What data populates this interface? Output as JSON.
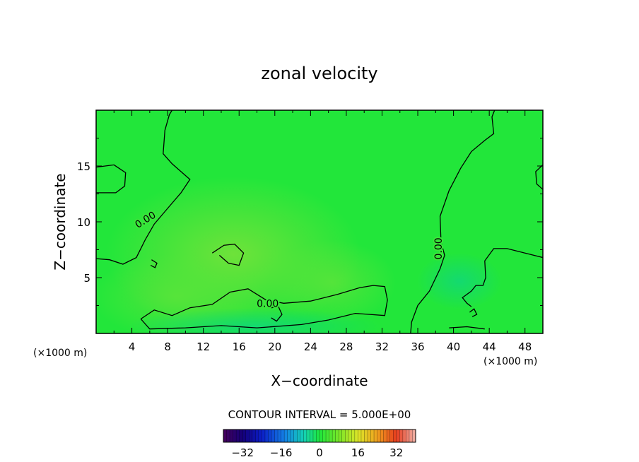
{
  "chart_data": {
    "type": "heatmap",
    "title": "zonal velocity",
    "xlabel": "X−coordinate",
    "ylabel": "Z−coordinate",
    "x_unit_left": "(×1000 m)",
    "x_unit_right": "(×1000 m)",
    "xlim": [
      0,
      50
    ],
    "ylim": [
      0,
      20
    ],
    "x_ticks": [
      4,
      8,
      12,
      16,
      20,
      24,
      28,
      32,
      36,
      40,
      44,
      48
    ],
    "y_ticks": [
      5,
      10,
      15
    ],
    "contour_interval_text": "CONTOUR INTERVAL = 5.000E+00",
    "contour_labels": [
      "0.00",
      "0.00",
      "0.00"
    ],
    "colorbar": {
      "min": -40,
      "max": 40,
      "ticks": [
        -32,
        -16,
        0,
        16,
        32
      ],
      "tick_labels": [
        "−32",
        "−16",
        "0",
        "16",
        "32"
      ]
    },
    "field_colors": {
      "background": "#22e63a",
      "positive": "#66e43a",
      "negative": "#10d86a"
    },
    "contours_zero_level": [
      [
        [
          0,
          6.7
        ],
        [
          1.5,
          6.6
        ],
        [
          3,
          6.2
        ],
        [
          4.5,
          6.8
        ],
        [
          5.5,
          8.4
        ],
        [
          6.5,
          9.8
        ],
        [
          8,
          11.2
        ],
        [
          9.5,
          12.6
        ],
        [
          10.5,
          13.8
        ],
        [
          8.5,
          15.2
        ],
        [
          7.5,
          16.1
        ],
        [
          7.7,
          18.2
        ],
        [
          8.2,
          19.6
        ],
        [
          8.5,
          20
        ]
      ],
      [
        [
          0,
          14.9
        ],
        [
          2,
          15.1
        ],
        [
          3.3,
          14.4
        ],
        [
          3.2,
          13.2
        ],
        [
          2.2,
          12.6
        ],
        [
          0,
          12.6
        ]
      ],
      [
        [
          5,
          1.3
        ],
        [
          6.5,
          2.1
        ],
        [
          8.5,
          1.6
        ],
        [
          10.5,
          2.3
        ],
        [
          13,
          2.6
        ],
        [
          15,
          3.7
        ],
        [
          17,
          4
        ],
        [
          19,
          3
        ],
        [
          21,
          2.7
        ],
        [
          24,
          2.9
        ],
        [
          27,
          3.5
        ],
        [
          29.5,
          4.1
        ],
        [
          31,
          4.3
        ],
        [
          32.3,
          4.2
        ],
        [
          32.6,
          3
        ],
        [
          32.3,
          1.6
        ],
        [
          29,
          1.8
        ],
        [
          26,
          1.2
        ],
        [
          23,
          0.8
        ],
        [
          18,
          0.5
        ],
        [
          14,
          0.7
        ],
        [
          10,
          0.5
        ],
        [
          6,
          0.4
        ],
        [
          5,
          1.3
        ]
      ],
      [
        [
          13,
          7.2
        ],
        [
          14.3,
          7.9
        ],
        [
          15.5,
          8
        ],
        [
          16.5,
          7.2
        ],
        [
          16,
          6.1
        ],
        [
          14.8,
          6.3
        ],
        [
          13.8,
          7
        ]
      ],
      [
        [
          6.2,
          6.6
        ],
        [
          6.8,
          6.3
        ],
        [
          6.6,
          5.9
        ],
        [
          6.1,
          6.1
        ]
      ],
      [
        [
          19.6,
          2.3
        ],
        [
          20.4,
          2.4
        ],
        [
          20.8,
          1.7
        ],
        [
          20.2,
          1.1
        ],
        [
          19.6,
          1.4
        ]
      ],
      [
        [
          35.2,
          0
        ],
        [
          35.3,
          1
        ],
        [
          36,
          2.5
        ],
        [
          37.3,
          3.8
        ],
        [
          38.5,
          5.8
        ],
        [
          39,
          7
        ],
        [
          38.6,
          8.2
        ],
        [
          38.5,
          10.5
        ],
        [
          39.5,
          12.8
        ],
        [
          40.8,
          14.8
        ],
        [
          42,
          16.3
        ],
        [
          43.5,
          17.3
        ],
        [
          44.5,
          17.9
        ],
        [
          44.3,
          19.4
        ],
        [
          44.6,
          20
        ]
      ],
      [
        [
          50,
          6.8
        ],
        [
          48,
          7.2
        ],
        [
          46,
          7.6
        ],
        [
          44.5,
          7.6
        ],
        [
          43.5,
          6.5
        ],
        [
          43.6,
          5
        ],
        [
          43.3,
          4.3
        ],
        [
          42.5,
          4.3
        ],
        [
          42,
          3.8
        ],
        [
          41,
          3.2
        ],
        [
          41.5,
          2.7
        ],
        [
          42,
          2.4
        ]
      ],
      [
        [
          50,
          15.1
        ],
        [
          49.2,
          14.5
        ],
        [
          49.3,
          13.4
        ],
        [
          50,
          12.9
        ]
      ],
      [
        [
          41.8,
          1.9
        ],
        [
          42.3,
          2.2
        ],
        [
          42.6,
          1.7
        ],
        [
          42.1,
          1.5
        ]
      ],
      [
        [
          39.5,
          0.5
        ],
        [
          41.5,
          0.6
        ],
        [
          43.5,
          0.4
        ]
      ]
    ],
    "contour_label_positions": [
      [
        5.5,
        10.2
      ],
      [
        38.3,
        7.6
      ],
      [
        19.2,
        2.7
      ]
    ]
  }
}
